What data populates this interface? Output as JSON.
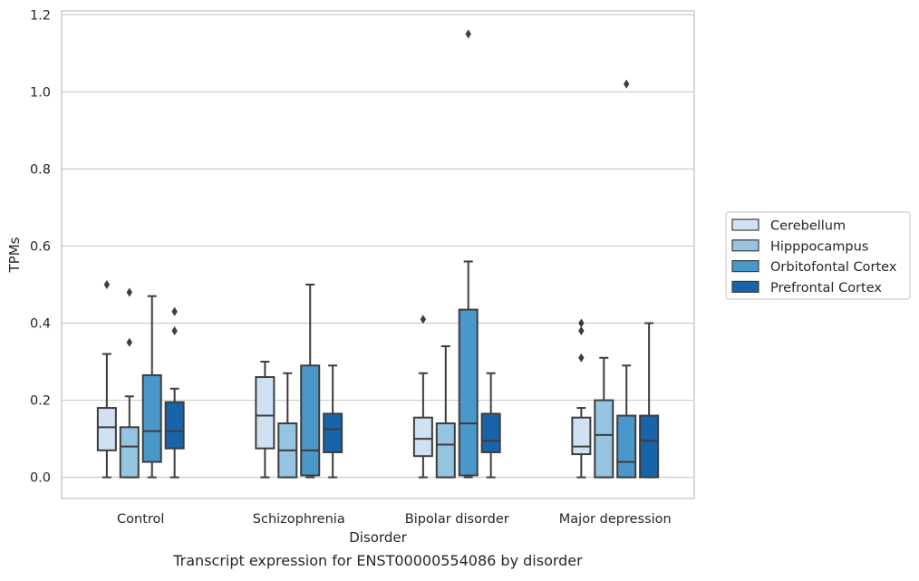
{
  "chart_data": {
    "type": "box",
    "caption": "Transcript expression for ENST00000554086 by disorder",
    "xlabel": "Disorder",
    "ylabel": "TPMs",
    "ylim": [
      -0.055,
      1.21
    ],
    "yticks": [
      0.0,
      0.2,
      0.4,
      0.6,
      0.8,
      1.0,
      1.2
    ],
    "ytick_labels": [
      "0.0",
      "0.2",
      "0.4",
      "0.6",
      "0.8",
      "1.0",
      "1.2"
    ],
    "grid": "horizontal",
    "legend_position": "right",
    "categories": [
      "Control",
      "Schizophrenia",
      "Bipolar disorder",
      "Major depression"
    ],
    "series": [
      {
        "name": "Cerebellum",
        "color": "#d0e1f2",
        "boxes": [
          {
            "whislo": 0.0,
            "q1": 0.07,
            "med": 0.13,
            "q3": 0.18,
            "whishi": 0.32,
            "fliers": [
              0.5
            ]
          },
          {
            "whislo": 0.0,
            "q1": 0.075,
            "med": 0.16,
            "q3": 0.26,
            "whishi": 0.3,
            "fliers": []
          },
          {
            "whislo": 0.0,
            "q1": 0.055,
            "med": 0.1,
            "q3": 0.155,
            "whishi": 0.27,
            "fliers": [
              0.41
            ]
          },
          {
            "whislo": 0.0,
            "q1": 0.06,
            "med": 0.08,
            "q3": 0.155,
            "whishi": 0.18,
            "fliers": [
              0.4,
              0.38,
              0.31
            ]
          }
        ]
      },
      {
        "name": "Hipppocampus",
        "color": "#94c4df",
        "boxes": [
          {
            "whislo": 0.0,
            "q1": 0.0,
            "med": 0.08,
            "q3": 0.13,
            "whishi": 0.21,
            "fliers": [
              0.48,
              0.35
            ]
          },
          {
            "whislo": 0.0,
            "q1": 0.0,
            "med": 0.07,
            "q3": 0.14,
            "whishi": 0.27,
            "fliers": []
          },
          {
            "whislo": 0.0,
            "q1": 0.0,
            "med": 0.085,
            "q3": 0.14,
            "whishi": 0.34,
            "fliers": []
          },
          {
            "whislo": 0.0,
            "q1": 0.0,
            "med": 0.11,
            "q3": 0.2,
            "whishi": 0.31,
            "fliers": []
          }
        ]
      },
      {
        "name": "Orbitofontal Cortex",
        "color": "#4a98c9",
        "boxes": [
          {
            "whislo": 0.0,
            "q1": 0.04,
            "med": 0.12,
            "q3": 0.265,
            "whishi": 0.47,
            "fliers": []
          },
          {
            "whislo": 0.0,
            "q1": 0.005,
            "med": 0.07,
            "q3": 0.29,
            "whishi": 0.5,
            "fliers": []
          },
          {
            "whislo": 0.0,
            "q1": 0.005,
            "med": 0.14,
            "q3": 0.435,
            "whishi": 0.56,
            "fliers": [
              1.15
            ]
          },
          {
            "whislo": 0.0,
            "q1": 0.0,
            "med": 0.04,
            "q3": 0.16,
            "whishi": 0.29,
            "fliers": [
              1.02
            ]
          }
        ]
      },
      {
        "name": "Prefrontal Cortex",
        "color": "#1764ab",
        "boxes": [
          {
            "whislo": 0.0,
            "q1": 0.075,
            "med": 0.12,
            "q3": 0.195,
            "whishi": 0.23,
            "fliers": [
              0.43,
              0.38
            ]
          },
          {
            "whislo": 0.0,
            "q1": 0.065,
            "med": 0.125,
            "q3": 0.165,
            "whishi": 0.29,
            "fliers": []
          },
          {
            "whislo": 0.0,
            "q1": 0.065,
            "med": 0.095,
            "q3": 0.165,
            "whishi": 0.27,
            "fliers": []
          },
          {
            "whislo": 0.0,
            "q1": 0.0,
            "med": 0.095,
            "q3": 0.16,
            "whishi": 0.4,
            "fliers": []
          }
        ]
      }
    ]
  }
}
